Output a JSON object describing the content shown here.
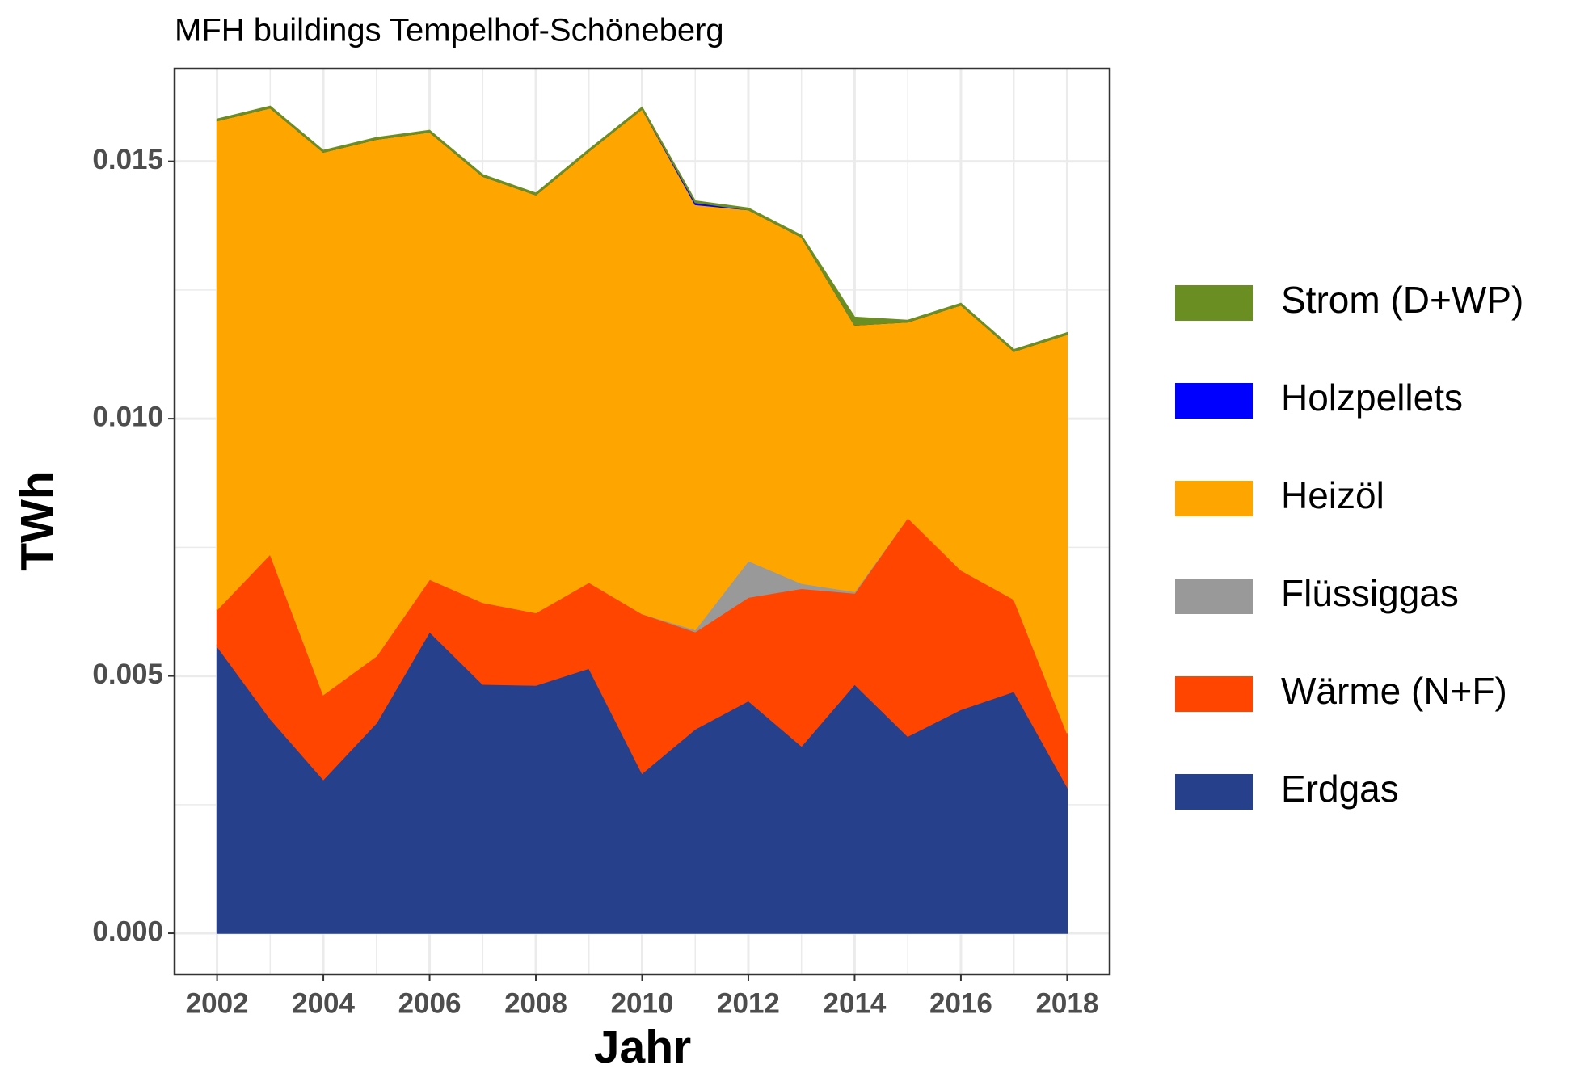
{
  "chart_data": {
    "type": "area",
    "stacked": true,
    "title": "MFH buildings Tempelhof-Schöneberg",
    "x_label": "Jahr",
    "y_label": "TWh",
    "x": [
      2002,
      2003,
      2004,
      2005,
      2006,
      2007,
      2008,
      2009,
      2010,
      2011,
      2012,
      2013,
      2014,
      2015,
      2016,
      2017,
      2018
    ],
    "series": [
      {
        "name": "Erdgas",
        "color": "#27408b",
        "values": [
          0.00558,
          0.00417,
          0.00299,
          0.00409,
          0.00586,
          0.00484,
          0.00482,
          0.00515,
          0.00311,
          0.00397,
          0.00452,
          0.00364,
          0.00484,
          0.00383,
          0.00435,
          0.0047,
          0.00285
        ]
      },
      {
        "name": "Wärme (N+F)",
        "color": "#ff4500",
        "values": [
          0.00071,
          0.0032,
          0.00165,
          0.0013,
          0.00102,
          0.00159,
          0.00141,
          0.00167,
          0.0031,
          0.00189,
          0.00201,
          0.00306,
          0.00177,
          0.00425,
          0.00271,
          0.00179,
          0.00104
        ]
      },
      {
        "name": "Flüssiggas",
        "color": "#999999",
        "values": [
          0,
          0,
          0,
          0,
          0,
          0,
          0,
          0,
          0,
          4e-05,
          0.00071,
          0.0001,
          3e-05,
          0,
          0,
          0,
          0
        ]
      },
      {
        "name": "Heizöl",
        "color": "#ffa500",
        "values": [
          0.0095,
          0.00867,
          0.01054,
          0.01004,
          0.00869,
          0.00828,
          0.00812,
          0.00838,
          0.00981,
          0.00826,
          0.00682,
          0.00673,
          0.00518,
          0.0038,
          0.00515,
          0.00482,
          0.00775
        ]
      },
      {
        "name": "Holzpellets",
        "color": "#0000ff",
        "values": [
          0,
          0,
          0,
          0,
          0,
          0,
          0,
          0,
          0,
          4e-05,
          0,
          0,
          0,
          0,
          0,
          0,
          0
        ]
      },
      {
        "name": "Strom (D+WP)",
        "color": "#6b8e23",
        "values": [
          3e-05,
          3e-05,
          3e-05,
          3e-05,
          3e-05,
          3e-05,
          3e-05,
          3e-05,
          3e-05,
          3e-05,
          3e-05,
          3e-05,
          0.00015,
          3e-05,
          3e-05,
          3e-05,
          3e-05
        ]
      }
    ],
    "xlim": [
      2001.2,
      2018.8
    ],
    "xticks": [
      2002,
      2004,
      2006,
      2008,
      2010,
      2012,
      2014,
      2016,
      2018
    ],
    "ylim": [
      -0.0008,
      0.0168
    ],
    "yticks": [
      {
        "value": 0,
        "label": "0.000"
      },
      {
        "value": 0.005,
        "label": "0.005"
      },
      {
        "value": 0.01,
        "label": "0.010"
      },
      {
        "value": 0.015,
        "label": "0.015"
      }
    ],
    "grid": true,
    "legend_position": "right"
  }
}
